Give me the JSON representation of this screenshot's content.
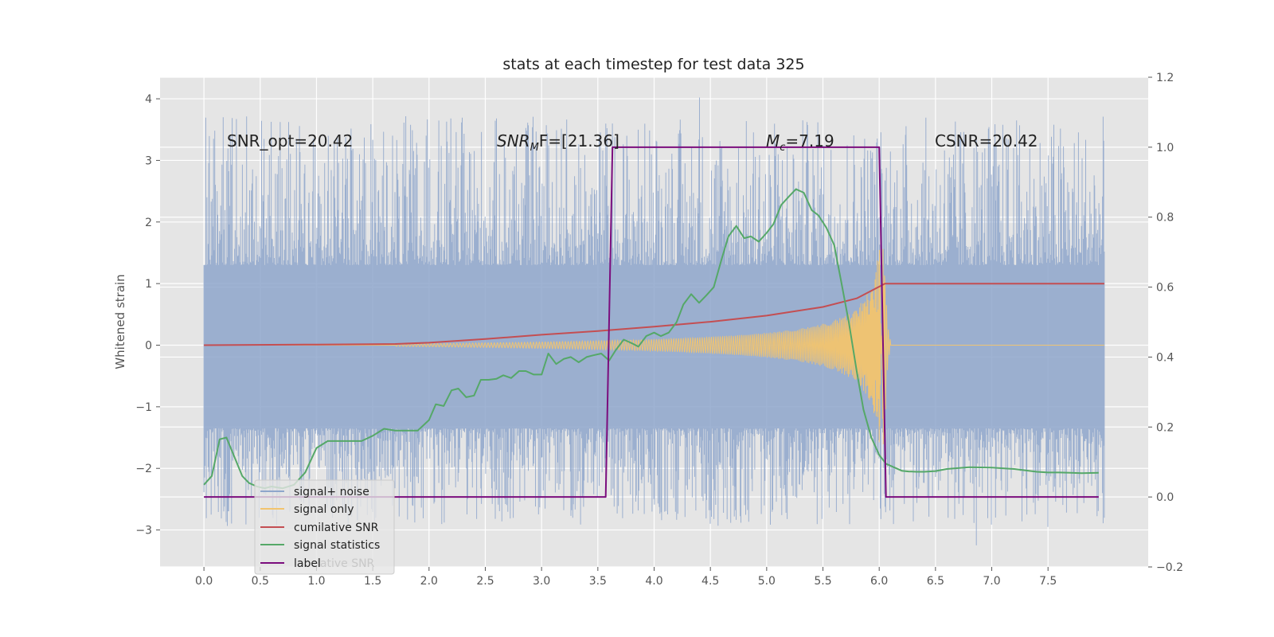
{
  "chart_data": {
    "type": "line",
    "title": "stats at each timestep for test data 325",
    "xlabel": "",
    "ylabel": "Whitened strain",
    "xlim": [
      -0.39,
      8.39
    ],
    "ylim": [
      -3.6,
      4.35
    ],
    "y2lim": [
      -0.2,
      1.2
    ],
    "grid": true,
    "x_ticks": [
      "0.0",
      "0.5",
      "1.0",
      "1.5",
      "2.0",
      "2.5",
      "3.0",
      "3.5",
      "4.0",
      "4.5",
      "5.0",
      "5.5",
      "6.0",
      "6.5",
      "7.0",
      "7.5"
    ],
    "y_ticks": [
      "−3",
      "−2",
      "−1",
      "0",
      "1",
      "2",
      "3",
      "4"
    ],
    "y2_ticks": [
      "−0.2",
      "0.0",
      "0.2",
      "0.4",
      "0.6",
      "0.8",
      "1.0",
      "1.2"
    ],
    "annotations": {
      "snr_opt": "SNR_opt=20.42",
      "snr_mf_sym": "SNR",
      "snr_mf_sub": "M",
      "snr_mf_rest": "F=[21.36]",
      "mc_sym": "M",
      "mc_sub": "c",
      "mc_rest": "=7.19",
      "csnr": "CSNR=20.42"
    },
    "legend": {
      "placement": "lower-left",
      "entries": [
        {
          "label": "signal+ noise",
          "color": "#8ea6cb"
        },
        {
          "label": "signal only",
          "color": "#f2c46e"
        },
        {
          "label": "cumilative SNR",
          "color": "#c44e52"
        },
        {
          "label": "signal statistics",
          "color": "#55a868"
        },
        {
          "label": "label",
          "color": "#7b0d7d"
        }
      ],
      "obscured_text": "lative SNR"
    },
    "series": [
      {
        "name": "signal+ noise",
        "axis": "left",
        "kind": "noise",
        "x_range": [
          0.0,
          8.0
        ],
        "band_low": -1.35,
        "band_high": 1.3,
        "max_peak": 4.02,
        "min_peak": -3.25,
        "seed": 325
      },
      {
        "name": "signal only",
        "axis": "left",
        "kind": "chirp",
        "x_start": 1.7,
        "x_merger": 6.05,
        "x_end": 8.0,
        "peak_amplitude": 1.65
      },
      {
        "name": "cumilative SNR",
        "axis": "left",
        "x": [
          0.0,
          1.0,
          1.5,
          1.7,
          2.0,
          2.5,
          3.0,
          3.5,
          4.0,
          4.5,
          5.0,
          5.5,
          5.8,
          6.0,
          6.05,
          7.0,
          8.0
        ],
        "y": [
          0.0,
          0.01,
          0.015,
          0.02,
          0.04,
          0.1,
          0.17,
          0.23,
          0.3,
          0.38,
          0.48,
          0.62,
          0.76,
          0.95,
          1.0,
          1.0,
          1.0
        ]
      },
      {
        "name": "signal statistics",
        "axis": "right",
        "x": [
          0.0,
          0.07,
          0.14,
          0.2,
          0.27,
          0.34,
          0.4,
          0.47,
          0.54,
          0.6,
          0.7,
          0.8,
          0.9,
          1.0,
          1.1,
          1.2,
          1.3,
          1.4,
          1.5,
          1.55,
          1.6,
          1.7,
          1.8,
          1.9,
          2.0,
          2.06,
          2.13,
          2.2,
          2.26,
          2.33,
          2.4,
          2.46,
          2.53,
          2.6,
          2.66,
          2.73,
          2.8,
          2.86,
          2.93,
          3.0,
          3.06,
          3.13,
          3.2,
          3.26,
          3.33,
          3.4,
          3.46,
          3.53,
          3.6,
          3.66,
          3.73,
          3.8,
          3.86,
          3.93,
          4.0,
          4.06,
          4.13,
          4.2,
          4.26,
          4.33,
          4.4,
          4.46,
          4.53,
          4.6,
          4.66,
          4.73,
          4.8,
          4.86,
          4.93,
          5.0,
          5.06,
          5.13,
          5.2,
          5.26,
          5.33,
          5.4,
          5.46,
          5.53,
          5.6,
          5.66,
          5.73,
          5.8,
          5.86,
          5.93,
          6.0,
          6.06,
          6.13,
          6.2,
          6.26,
          6.33,
          6.4,
          6.5,
          6.6,
          6.8,
          7.0,
          7.2,
          7.4,
          7.5,
          7.6,
          7.7,
          7.8,
          7.95
        ],
        "y": [
          0.035,
          0.06,
          0.165,
          0.17,
          0.115,
          0.06,
          0.04,
          0.03,
          0.025,
          0.03,
          0.025,
          0.035,
          0.07,
          0.14,
          0.16,
          0.16,
          0.16,
          0.16,
          0.175,
          0.185,
          0.195,
          0.19,
          0.19,
          0.19,
          0.22,
          0.265,
          0.26,
          0.305,
          0.31,
          0.285,
          0.29,
          0.335,
          0.335,
          0.338,
          0.348,
          0.34,
          0.36,
          0.36,
          0.35,
          0.35,
          0.41,
          0.38,
          0.395,
          0.4,
          0.385,
          0.4,
          0.405,
          0.41,
          0.39,
          0.42,
          0.45,
          0.44,
          0.43,
          0.46,
          0.47,
          0.46,
          0.47,
          0.5,
          0.55,
          0.58,
          0.555,
          0.575,
          0.6,
          0.68,
          0.745,
          0.775,
          0.74,
          0.745,
          0.73,
          0.755,
          0.78,
          0.835,
          0.86,
          0.88,
          0.87,
          0.82,
          0.805,
          0.77,
          0.72,
          0.62,
          0.5,
          0.36,
          0.25,
          0.17,
          0.12,
          0.095,
          0.085,
          0.075,
          0.073,
          0.072,
          0.072,
          0.074,
          0.08,
          0.085,
          0.084,
          0.08,
          0.072,
          0.07,
          0.07,
          0.069,
          0.068,
          0.069
        ]
      },
      {
        "name": "label",
        "axis": "right",
        "x": [
          0.0,
          3.57,
          3.63,
          6.0,
          6.06,
          7.95
        ],
        "y": [
          0.0,
          0.0,
          1.0,
          1.0,
          0.0,
          0.0
        ]
      }
    ]
  }
}
